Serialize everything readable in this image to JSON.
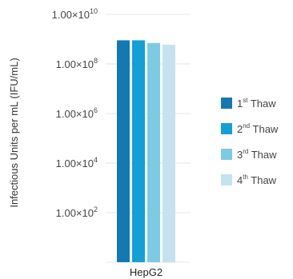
{
  "chart_data": {
    "type": "bar",
    "ylabel": "Infectious Units per mL  (IFU/mL)",
    "xlabel": "",
    "categories": [
      "HepG2"
    ],
    "yscale": "log",
    "ylim": [
      1,
      10000000000
    ],
    "yticks": [
      {
        "value": 10000000000,
        "mantissa": "1.00",
        "times": "×",
        "base": "10",
        "exp": "10"
      },
      {
        "value": 100000000,
        "mantissa": "1.00",
        "times": "×",
        "base": "10",
        "exp": "8"
      },
      {
        "value": 1000000,
        "mantissa": "1.00",
        "times": "×",
        "base": "10",
        "exp": "6"
      },
      {
        "value": 10000,
        "mantissa": "1.00",
        "times": "×",
        "base": "10",
        "exp": "4"
      },
      {
        "value": 100,
        "mantissa": "1.00",
        "times": "×",
        "base": "10",
        "exp": "2"
      }
    ],
    "grid": true,
    "legend_position": "right",
    "series": [
      {
        "name_num": "1",
        "name_sup": "st",
        "name_rest": " Thaw",
        "color": "#1479b3",
        "values": [
          900000000
        ]
      },
      {
        "name_num": "2",
        "name_sup": "nd",
        "name_rest": " Thaw",
        "color": "#12a0d6",
        "values": [
          900000000
        ]
      },
      {
        "name_num": "3",
        "name_sup": "rd",
        "name_rest": " Thaw",
        "color": "#7ccbe4",
        "values": [
          700000000
        ]
      },
      {
        "name_num": "4",
        "name_sup": "th",
        "name_rest": " Thaw",
        "color": "#c4e3ee",
        "values": [
          600000000
        ]
      }
    ]
  }
}
